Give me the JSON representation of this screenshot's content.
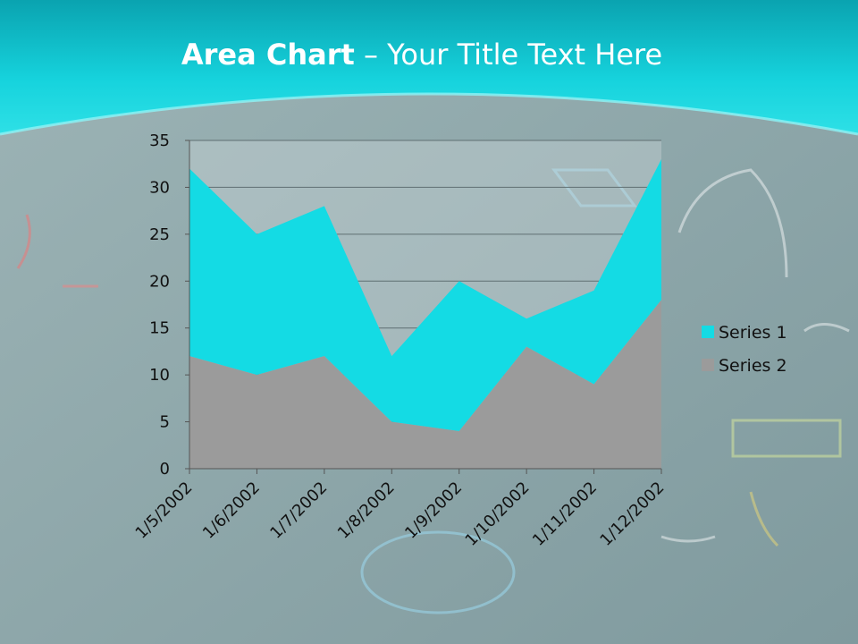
{
  "slide": {
    "title_bold": "Area Chart",
    "title_sep": " – ",
    "title_rest": "Your Title Text Here"
  },
  "colors": {
    "series1": "#14dbe4",
    "series2": "#9b9b9b",
    "header": "#12c9d6"
  },
  "chart_data": {
    "type": "area",
    "stacked": true,
    "categories": [
      "1/5/2002",
      "1/6/2002",
      "1/7/2002",
      "1/8/2002",
      "1/9/2002",
      "1/10/2002",
      "1/11/2002",
      "1/12/2002"
    ],
    "series": [
      {
        "name": "Series 1",
        "values": [
          20,
          15,
          16,
          7,
          16,
          3,
          10,
          15
        ]
      },
      {
        "name": "Series 2",
        "values": [
          12,
          10,
          12,
          5,
          4,
          13,
          9,
          18
        ]
      }
    ],
    "yticks": [
      0,
      5,
      10,
      15,
      20,
      25,
      30,
      35
    ],
    "ylim": [
      0,
      35
    ],
    "gridlines": true,
    "legend": "right"
  }
}
